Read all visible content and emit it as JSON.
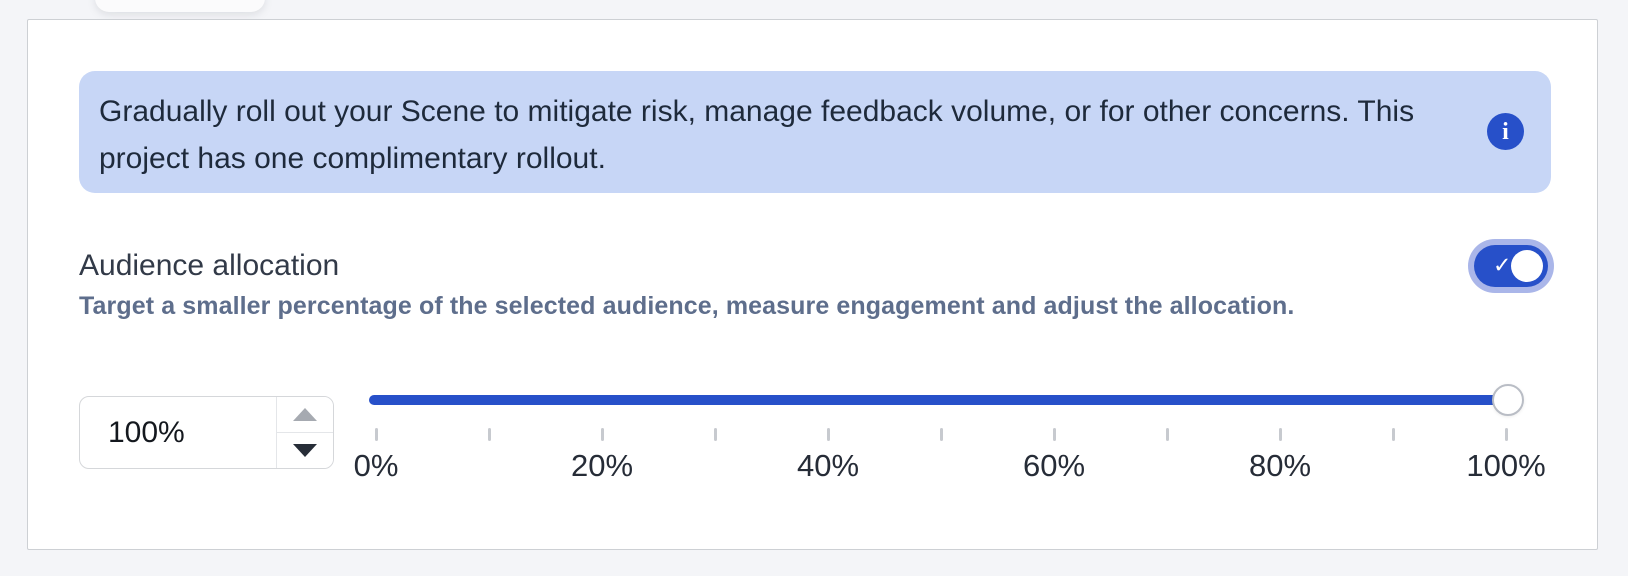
{
  "banner": {
    "lines": "Gradually roll out your Scene to mitigate risk, manage feedback volume, or for other concerns. This\nproject has one complimentary rollout.",
    "info_icon_glyph": "i",
    "background_color": "#c7d6f6",
    "icon_color": "#2750c9"
  },
  "allocation": {
    "label": "Audience allocation",
    "description": "Target a smaller percentage of the selected audience, measure engagement and adjust the allocation.",
    "toggle": {
      "state": "on",
      "check_glyph": "✓",
      "on_color": "#2750c9",
      "halo_color": "#aab6e9"
    }
  },
  "slider": {
    "input_value": "100%",
    "value_percent": 100,
    "min_percent": 0,
    "max_percent": 100,
    "tick_step_percent": 10,
    "label_step_percent": 20,
    "tick_labels": [
      "0%",
      "20%",
      "40%",
      "60%",
      "80%",
      "100%"
    ],
    "track_color": "#2750c9"
  }
}
